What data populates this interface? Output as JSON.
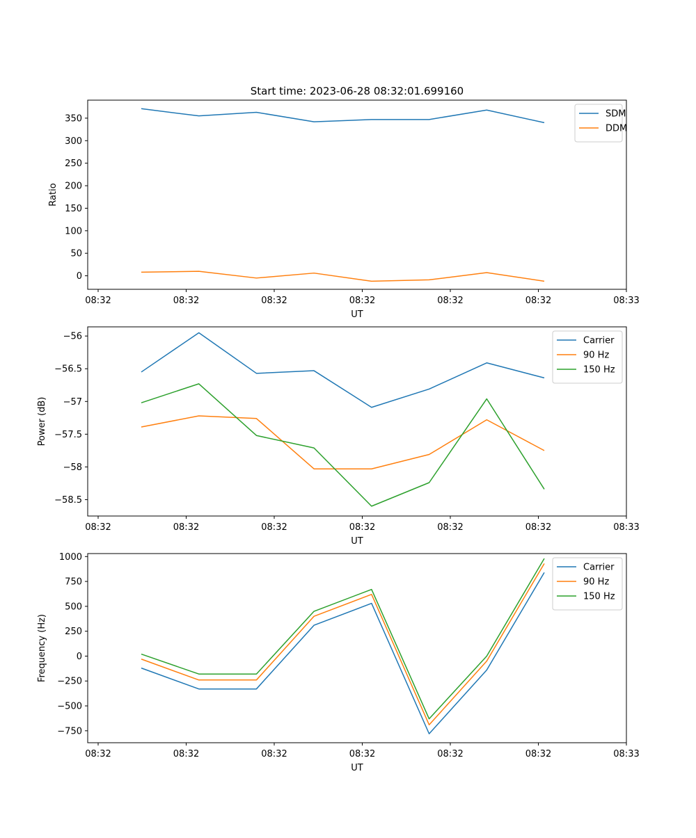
{
  "chart_data": [
    {
      "type": "line",
      "title": "Start time: 2023-06-28 08:32:01.699160",
      "xlabel": "UT",
      "ylabel": "Ratio",
      "xticklabels": [
        "08:32",
        "08:32",
        "08:32",
        "08:32",
        "08:32",
        "08:32",
        "08:33"
      ],
      "yticks": [
        0,
        50,
        100,
        150,
        200,
        250,
        300,
        350
      ],
      "ylim": [
        -30,
        390
      ],
      "legend": "top-right",
      "grid": false,
      "series": [
        {
          "name": "SDM",
          "color": "#1f77b4",
          "values": [
            371,
            355,
            363,
            342,
            347,
            347,
            368,
            340
          ]
        },
        {
          "name": "DDM",
          "color": "#ff7f0e",
          "values": [
            8,
            10,
            -5,
            6,
            -12,
            -9,
            7,
            -12
          ]
        }
      ]
    },
    {
      "type": "line",
      "title": "",
      "xlabel": "UT",
      "ylabel": "Power (dB)",
      "xticklabels": [
        "08:32",
        "08:32",
        "08:32",
        "08:32",
        "08:32",
        "08:32",
        "08:33"
      ],
      "yticks": [
        -56.0,
        -56.5,
        -57.0,
        -57.5,
        -58.0,
        -58.5
      ],
      "ylim": [
        -58.75,
        -55.86
      ],
      "legend": "top-right",
      "grid": false,
      "series": [
        {
          "name": "Carrier",
          "color": "#1f77b4",
          "values": [
            -56.55,
            -55.95,
            -56.57,
            -56.53,
            -57.09,
            -56.81,
            -56.41,
            -56.64
          ]
        },
        {
          "name": "90 Hz",
          "color": "#ff7f0e",
          "values": [
            -57.39,
            -57.22,
            -57.26,
            -58.03,
            -58.03,
            -57.81,
            -57.28,
            -57.75
          ]
        },
        {
          "name": "150 Hz",
          "color": "#2ca02c",
          "values": [
            -57.02,
            -56.73,
            -57.52,
            -57.71,
            -58.6,
            -58.24,
            -56.96,
            -58.34
          ]
        }
      ]
    },
    {
      "type": "line",
      "title": "",
      "xlabel": "UT",
      "ylabel": "Frequency (Hz)",
      "xticklabels": [
        "08:32",
        "08:32",
        "08:32",
        "08:32",
        "08:32",
        "08:32",
        "08:33"
      ],
      "yticks": [
        -750,
        -500,
        -250,
        0,
        250,
        500,
        750,
        1000
      ],
      "ylim": [
        -870,
        1030
      ],
      "legend": "top-right",
      "grid": false,
      "series": [
        {
          "name": "Carrier",
          "color": "#1f77b4",
          "values": [
            -120,
            -330,
            -330,
            310,
            530,
            -780,
            -140,
            840
          ]
        },
        {
          "name": "90 Hz",
          "color": "#ff7f0e",
          "values": [
            -30,
            -240,
            -240,
            400,
            620,
            -690,
            -50,
            930
          ]
        },
        {
          "name": "150 Hz",
          "color": "#2ca02c",
          "values": [
            20,
            -180,
            -180,
            450,
            670,
            -630,
            0,
            980
          ]
        }
      ]
    }
  ]
}
